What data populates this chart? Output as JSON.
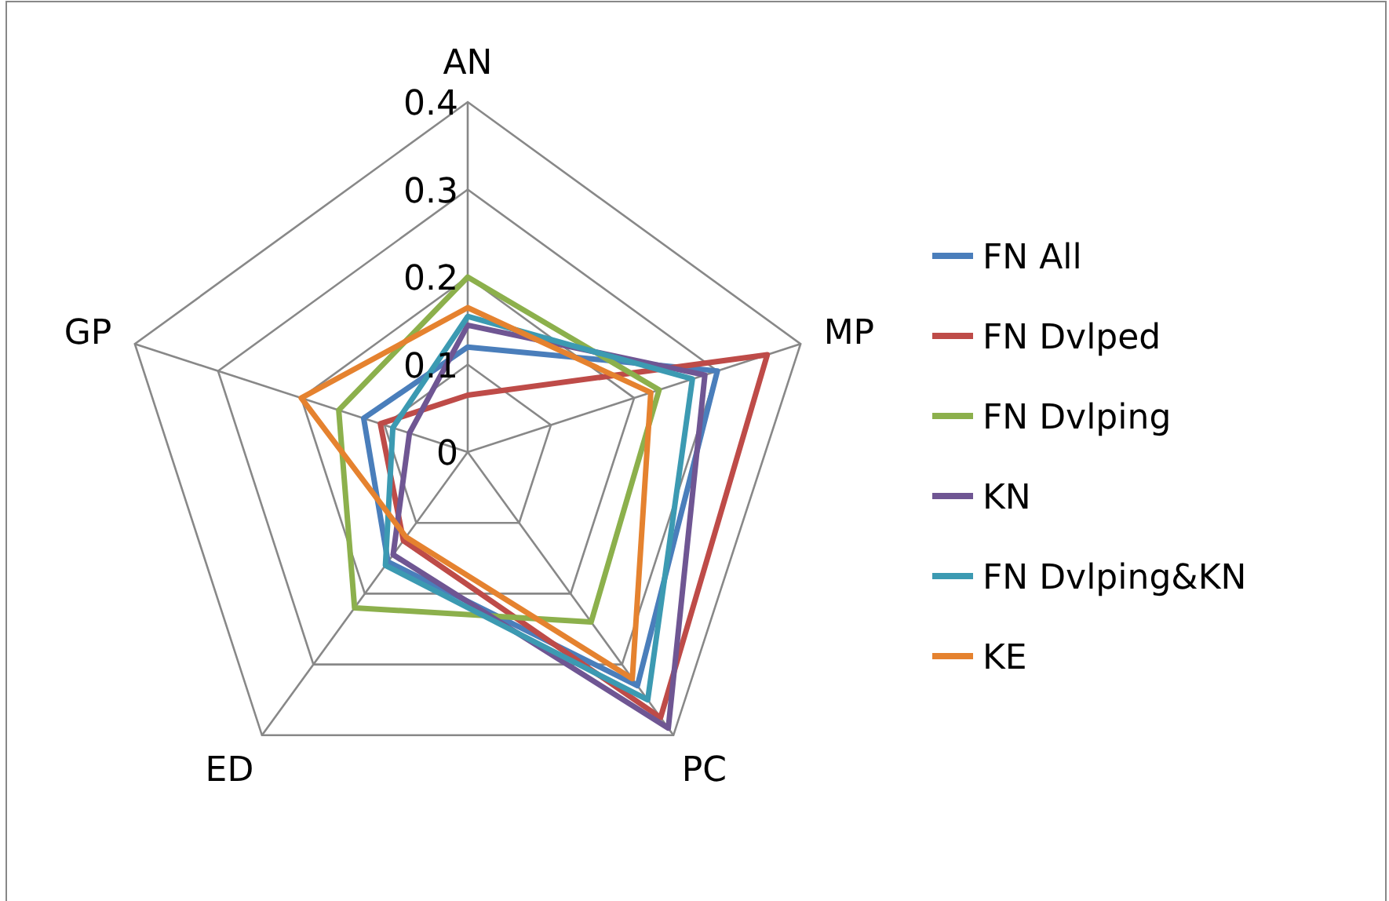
{
  "chart_data": {
    "type": "radar",
    "categories": [
      "AN",
      "MP",
      "PC",
      "ED",
      "GP"
    ],
    "ylim": [
      0,
      0.4
    ],
    "yticks": [
      0,
      0.1,
      0.2,
      0.3,
      0.4
    ],
    "grid": true,
    "legend": "right",
    "marker": "none",
    "series": [
      {
        "name": "FN All",
        "color": "#4a7ebb",
        "values": [
          0.12,
          0.3,
          0.33,
          0.155,
          0.125
        ]
      },
      {
        "name": "FN Dvlped",
        "color": "#be4b48",
        "values": [
          0.065,
          0.36,
          0.375,
          0.125,
          0.105
        ]
      },
      {
        "name": "FN Dvlping",
        "color": "#8cb04c",
        "values": [
          0.2,
          0.23,
          0.24,
          0.22,
          0.155
        ]
      },
      {
        "name": "KN",
        "color": "#6f5693",
        "values": [
          0.145,
          0.285,
          0.39,
          0.145,
          0.07
        ]
      },
      {
        "name": "FN Dvlping&KN",
        "color": "#3c9ab2",
        "values": [
          0.155,
          0.27,
          0.35,
          0.16,
          0.09
        ]
      },
      {
        "name": "KE",
        "color": "#e5822f",
        "values": [
          0.165,
          0.22,
          0.32,
          0.12,
          0.2
        ]
      }
    ]
  }
}
